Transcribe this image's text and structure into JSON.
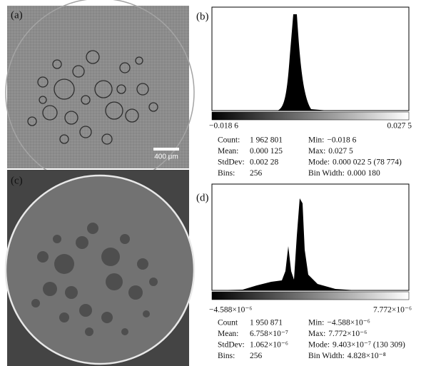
{
  "panels": [
    {
      "label": "(a)",
      "scale_bar": "400 μm"
    },
    {
      "label": "(b)",
      "range_min": "−0.018 6",
      "range_max": "0.027 5",
      "stats_left": [
        [
          "Count:",
          "1 962 801"
        ],
        [
          "Mean:",
          "0.000 125"
        ],
        [
          "StdDev:",
          "0.002 28"
        ],
        [
          "Bins:",
          "256"
        ]
      ],
      "stats_right": [
        [
          "Min:",
          "−0.018 6"
        ],
        [
          "Max:",
          "0.027 5"
        ],
        [
          "Mode:",
          "0.000 022 5 (78 774)"
        ],
        [
          "Bin Width:",
          "0.000 180"
        ]
      ]
    },
    {
      "label": "(c)"
    },
    {
      "label": "(d)",
      "range_min": "−4.588×10⁻⁶",
      "range_max": "7.772×10⁻⁶",
      "stats_left": [
        [
          "Count",
          "1 950 871"
        ],
        [
          "Mean:",
          "6.758×10⁻⁷"
        ],
        [
          "StdDev:",
          "1.062×10⁻⁶"
        ],
        [
          "Bins:",
          "256"
        ]
      ],
      "stats_right": [
        [
          "Min:",
          "−4.588×10⁻⁶"
        ],
        [
          "Max:",
          "7.772×10⁻⁶"
        ],
        [
          "Mode:",
          "9.403×10⁻⁷  (130 309)"
        ],
        [
          "Bin Width:",
          "4.828×10⁻⁸"
        ]
      ]
    }
  ]
}
